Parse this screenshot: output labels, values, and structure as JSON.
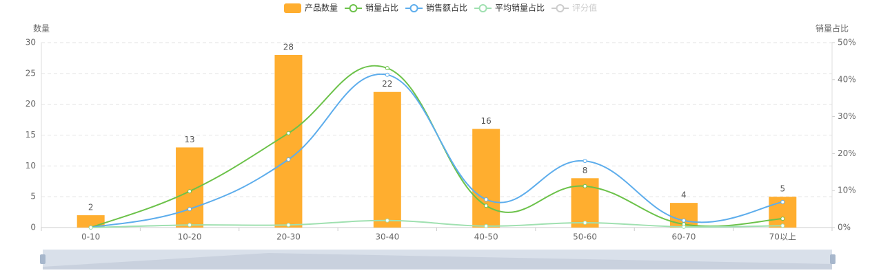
{
  "chart_data": {
    "type": "combo",
    "y_label": "数量",
    "y2_label": "销量占比",
    "categories": [
      "0-10",
      "10-20",
      "20-30",
      "30-40",
      "40-50",
      "50-60",
      "60-70",
      "70以上"
    ],
    "ylim": [
      0,
      30
    ],
    "yticks": [
      0,
      5,
      10,
      15,
      20,
      25,
      30
    ],
    "y2lim": [
      0,
      50
    ],
    "y2ticks": [
      {
        "value": 0,
        "label": "0%"
      },
      {
        "value": 10,
        "label": "10%"
      },
      {
        "value": 20,
        "label": "20%"
      },
      {
        "value": 30,
        "label": "30%"
      },
      {
        "value": 40,
        "label": "40%"
      },
      {
        "value": 50,
        "label": "50%"
      }
    ],
    "grid": true,
    "legend": "top",
    "series": [
      {
        "name": "产品数量",
        "type": "bar",
        "color": "#ffae2f",
        "values": [
          2,
          13,
          28,
          22,
          16,
          8,
          4,
          5
        ]
      },
      {
        "name": "销量占比",
        "type": "line",
        "axis": "y2",
        "color": "#6cc24a",
        "values": [
          0,
          9.8,
          25.5,
          43.1,
          5.9,
          11.2,
          0.9,
          2.4
        ]
      },
      {
        "name": "销售额占比",
        "type": "line",
        "axis": "y2",
        "color": "#5dadec",
        "values": [
          0,
          5.0,
          18.4,
          41.3,
          7.6,
          18.0,
          1.9,
          6.9
        ]
      },
      {
        "name": "平均销量占比",
        "type": "line",
        "axis": "y2",
        "color": "#9fe0b0",
        "values": [
          0,
          0.7,
          0.7,
          1.9,
          0.4,
          1.3,
          0.2,
          0.5
        ]
      },
      {
        "name": "评分值",
        "type": "line",
        "axis": "y2",
        "color": "#cccccc",
        "hidden": true
      }
    ]
  }
}
